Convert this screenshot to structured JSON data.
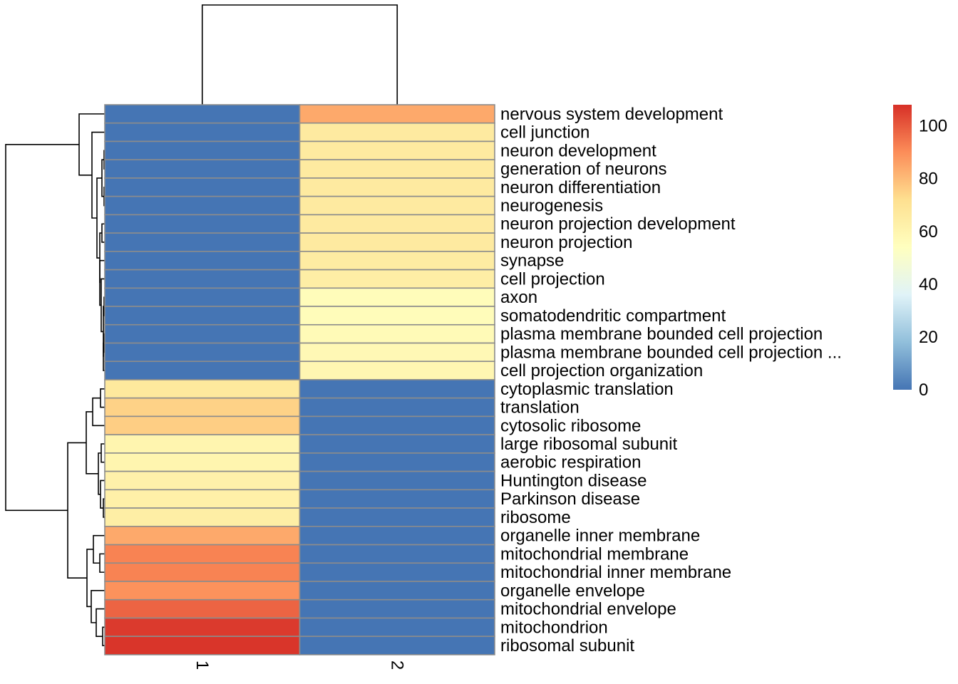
{
  "chart_data": {
    "type": "heatmap",
    "title": "",
    "xlabel": "",
    "ylabel": "",
    "columns": [
      "1",
      "2"
    ],
    "rows": [
      "nervous system development",
      "cell junction",
      "neuron development",
      "generation of neurons",
      "neuron differentiation",
      "neurogenesis",
      "neuron projection development",
      "neuron projection",
      "synapse",
      "cell projection",
      "axon",
      "somatodendritic compartment",
      "plasma membrane bounded cell projection",
      "plasma membrane bounded cell projection ...",
      "cell projection organization",
      "cytoplasmic translation",
      "translation",
      "cytosolic ribosome",
      "large ribosomal subunit",
      "aerobic respiration",
      "Huntington disease",
      "Parkinson disease",
      "ribosome",
      "organelle inner membrane",
      "mitochondrial membrane",
      "mitochondrial inner membrane",
      "organelle envelope",
      "mitochondrial envelope",
      "mitochondrion",
      "ribosomal subunit"
    ],
    "values": [
      [
        0,
        84
      ],
      [
        0,
        66
      ],
      [
        0,
        66
      ],
      [
        0,
        66
      ],
      [
        0,
        66
      ],
      [
        0,
        66
      ],
      [
        0,
        66
      ],
      [
        0,
        66
      ],
      [
        0,
        65
      ],
      [
        0,
        64
      ],
      [
        0,
        56
      ],
      [
        0,
        56
      ],
      [
        0,
        57
      ],
      [
        0,
        58
      ],
      [
        0,
        59
      ],
      [
        67,
        0
      ],
      [
        75,
        0
      ],
      [
        76,
        0
      ],
      [
        60,
        0
      ],
      [
        60,
        0
      ],
      [
        62,
        0
      ],
      [
        63,
        0
      ],
      [
        64,
        0
      ],
      [
        84,
        0
      ],
      [
        92,
        0
      ],
      [
        92,
        0
      ],
      [
        89,
        0
      ],
      [
        98,
        0
      ],
      [
        106,
        0
      ],
      [
        107,
        0
      ]
    ],
    "color_scale": {
      "min": 0,
      "max": 108,
      "colors": [
        "#4575b4",
        "#91bfdb",
        "#e0f3f8",
        "#ffffbf",
        "#fee090",
        "#fc8d59",
        "#d73027"
      ],
      "ticks": [
        "0",
        "20",
        "40",
        "60",
        "80",
        "100"
      ]
    },
    "legend": "right",
    "row_dendrogram": "left",
    "column_dendrogram": "top"
  }
}
